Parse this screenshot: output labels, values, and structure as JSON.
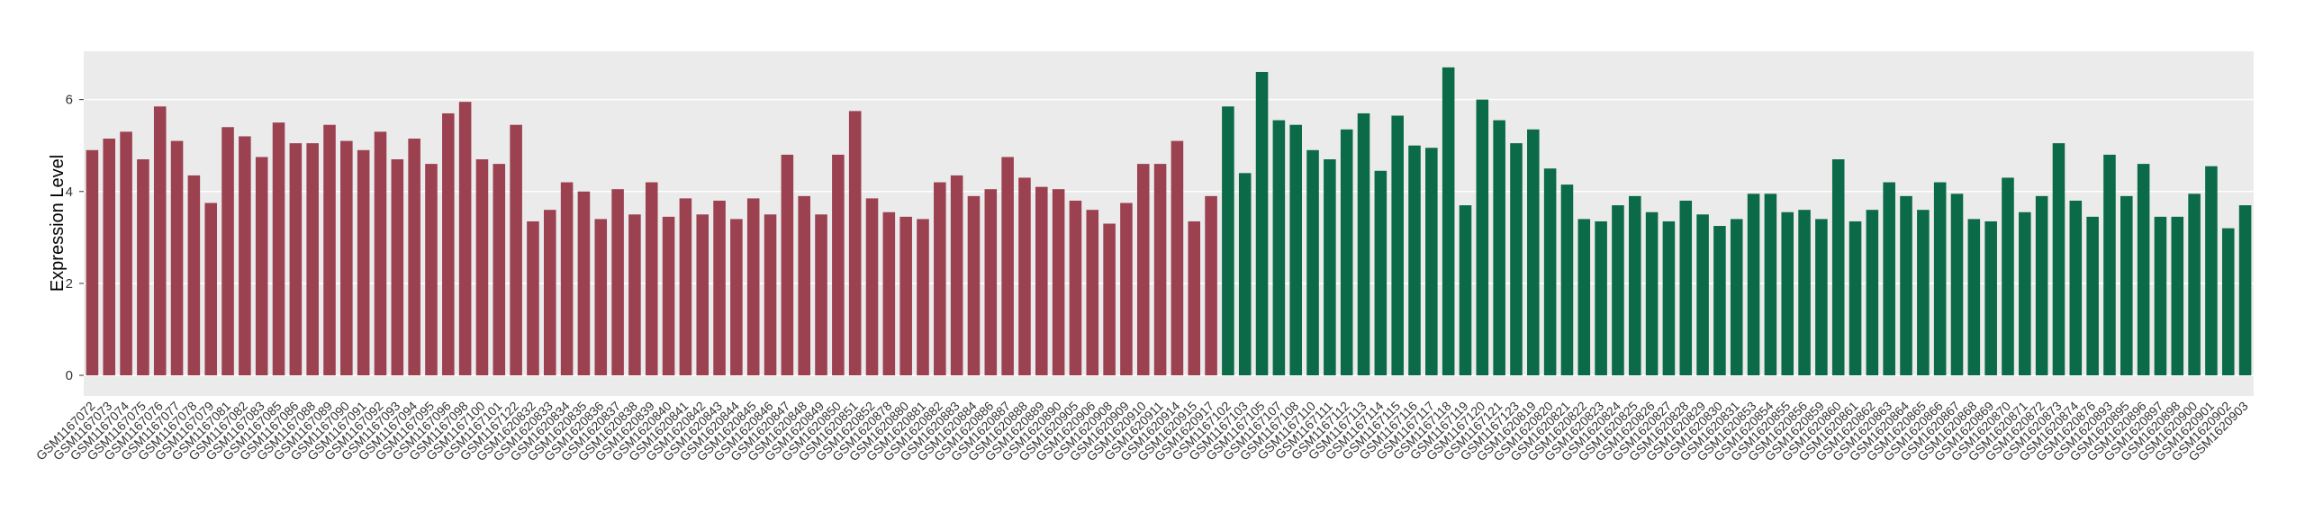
{
  "chart_data": {
    "type": "bar",
    "ylabel": "Expression Level",
    "ylim": [
      -0.45,
      7.05
    ],
    "yticks": [
      0,
      2,
      4,
      6
    ],
    "grid": true,
    "groups": [
      {
        "color": "#9b4150",
        "categories": [
          "GSM1167072",
          "GSM1167073",
          "GSM1167074",
          "GSM1167075",
          "GSM1167076",
          "GSM1167077",
          "GSM1167078",
          "GSM1167079",
          "GSM1167081",
          "GSM1167082",
          "GSM1167083",
          "GSM1167085",
          "GSM1167086",
          "GSM1167088",
          "GSM1167089",
          "GSM1167090",
          "GSM1167091",
          "GSM1167092",
          "GSM1167093",
          "GSM1167094",
          "GSM1167095",
          "GSM1167096",
          "GSM1167098",
          "GSM1167100",
          "GSM1167101",
          "GSM1167122",
          "GSM1620832",
          "GSM1620833",
          "GSM1620834",
          "GSM1620835",
          "GSM1620836",
          "GSM1620837",
          "GSM1620838",
          "GSM1620839",
          "GSM1620840",
          "GSM1620841",
          "GSM1620842",
          "GSM1620843",
          "GSM1620844",
          "GSM1620845",
          "GSM1620846",
          "GSM1620847",
          "GSM1620848",
          "GSM1620849",
          "GSM1620850",
          "GSM1620851",
          "GSM1620852",
          "GSM1620878",
          "GSM1620880",
          "GSM1620881",
          "GSM1620882",
          "GSM1620883",
          "GSM1620884",
          "GSM1620886",
          "GSM1620887",
          "GSM1620888",
          "GSM1620889",
          "GSM1620890",
          "GSM1620905",
          "GSM1620906",
          "GSM1620908",
          "GSM1620909",
          "GSM1620910",
          "GSM1620911",
          "GSM1620914",
          "GSM1620915",
          "GSM1620917"
        ],
        "values": [
          4.9,
          5.15,
          5.3,
          4.7,
          5.85,
          5.1,
          4.35,
          3.75,
          5.4,
          5.2,
          4.75,
          5.5,
          5.05,
          5.05,
          5.45,
          5.1,
          4.9,
          5.3,
          4.7,
          5.15,
          4.6,
          5.7,
          5.95,
          4.7,
          4.6,
          5.45,
          3.35,
          3.6,
          4.2,
          4.0,
          3.4,
          4.05,
          3.5,
          4.2,
          3.45,
          3.85,
          3.5,
          3.8,
          3.4,
          3.85,
          3.5,
          4.8,
          3.9,
          3.5,
          4.8,
          5.75,
          3.85,
          3.55,
          3.45,
          3.4,
          4.2,
          4.35,
          3.9,
          4.05,
          4.75,
          4.3,
          4.1,
          4.05,
          3.8,
          3.6,
          3.3,
          3.75,
          4.6,
          4.6,
          5.1,
          3.35,
          3.9
        ]
      },
      {
        "color": "#0b6a47",
        "categories": [
          "GSM1167102",
          "GSM1167103",
          "GSM1167105",
          "GSM1167107",
          "GSM1167108",
          "GSM1167110",
          "GSM1167111",
          "GSM1167112",
          "GSM1167113",
          "GSM1167114",
          "GSM1167115",
          "GSM1167116",
          "GSM1167117",
          "GSM1167118",
          "GSM1167119",
          "GSM1167120",
          "GSM1167121",
          "GSM1167123",
          "GSM1620819",
          "GSM1620820",
          "GSM1620821",
          "GSM1620822",
          "GSM1620823",
          "GSM1620824",
          "GSM1620825",
          "GSM1620826",
          "GSM1620827",
          "GSM1620828",
          "GSM1620829",
          "GSM1620830",
          "GSM1620831",
          "GSM1620853",
          "GSM1620854",
          "GSM1620855",
          "GSM1620856",
          "GSM1620859",
          "GSM1620860",
          "GSM1620861",
          "GSM1620862",
          "GSM1620863",
          "GSM1620864",
          "GSM1620865",
          "GSM1620866",
          "GSM1620867",
          "GSM1620868",
          "GSM1620869",
          "GSM1620870",
          "GSM1620871",
          "GSM1620872",
          "GSM1620873",
          "GSM1620874",
          "GSM1620876",
          "GSM1620893",
          "GSM1620895",
          "GSM1620896",
          "GSM1620897",
          "GSM1620898",
          "GSM1620900",
          "GSM1620901",
          "GSM1620902",
          "GSM1620903"
        ],
        "values": [
          5.85,
          4.4,
          6.6,
          5.55,
          5.45,
          4.9,
          4.7,
          5.35,
          5.7,
          4.45,
          5.65,
          5.0,
          4.95,
          6.7,
          3.7,
          6.0,
          5.55,
          5.05,
          5.35,
          4.5,
          4.15,
          3.4,
          3.35,
          3.7,
          3.9,
          3.55,
          3.35,
          3.8,
          3.5,
          3.25,
          3.4,
          3.95,
          3.95,
          3.55,
          3.6,
          3.4,
          4.7,
          3.35,
          3.6,
          4.2,
          3.9,
          3.6,
          4.2,
          3.95,
          3.4,
          3.35,
          4.3,
          3.55,
          3.9,
          5.05,
          3.8,
          3.45,
          4.8,
          3.9,
          4.6,
          3.45,
          3.45,
          3.95,
          4.55,
          3.2,
          3.7
        ]
      }
    ]
  }
}
